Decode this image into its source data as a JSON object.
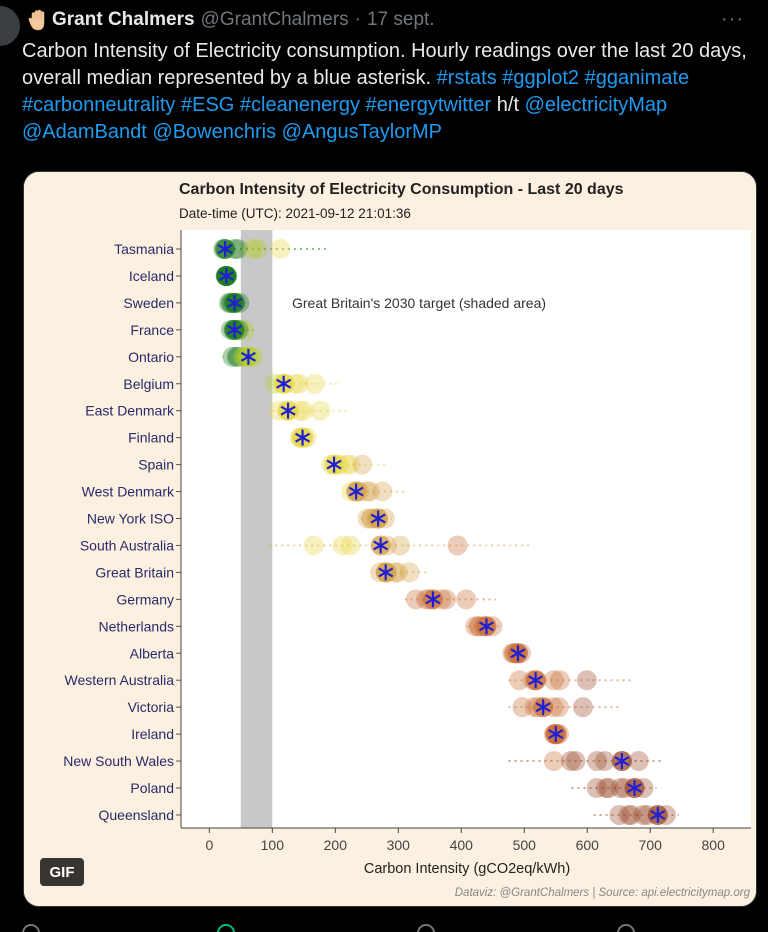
{
  "tweet": {
    "author_name": "Grant Chalmers",
    "handle": "@GrantChalmers",
    "separator": "·",
    "date": "17 sept.",
    "more_label": "···",
    "text_parts": [
      {
        "text": "Carbon Intensity of Electricity consumption. Hourly readings over the last 20 days, overall median represented by a blue asterisk. ",
        "link": false
      },
      {
        "text": "#rstats",
        "link": true
      },
      {
        "text": " ",
        "link": false
      },
      {
        "text": "#ggplot2",
        "link": true
      },
      {
        "text": " ",
        "link": false
      },
      {
        "text": "#gganimate",
        "link": true
      },
      {
        "text": " ",
        "link": false
      },
      {
        "text": "#carbonneutrality",
        "link": true
      },
      {
        "text": " ",
        "link": false
      },
      {
        "text": "#ESG",
        "link": true
      },
      {
        "text": " ",
        "link": false
      },
      {
        "text": "#cleanenergy",
        "link": true
      },
      {
        "text": "  ",
        "link": false
      },
      {
        "text": "#energytwitter",
        "link": true
      },
      {
        "text": " h/t ",
        "link": false
      },
      {
        "text": "@electricityMap",
        "link": true
      },
      {
        "text": " ",
        "link": false
      },
      {
        "text": "@AdamBandt",
        "link": true
      },
      {
        "text": " ",
        "link": false
      },
      {
        "text": "@Bowenchris",
        "link": true
      },
      {
        "text": " ",
        "link": false
      },
      {
        "text": "@AngusTaylorMP",
        "link": true
      }
    ],
    "gif_label": "GIF"
  },
  "chart_data": {
    "type": "scatter",
    "title": "Carbon Intensity of Electricity Consumption - Last 20 days",
    "subtitle": "Date-time (UTC): 2021-09-12 21:01:36",
    "xlabel": "Carbon Intensity (gCO2eq/kWh)",
    "xlim": [
      -45,
      860
    ],
    "xticks": [
      0,
      100,
      200,
      300,
      400,
      500,
      600,
      700,
      800
    ],
    "shaded_band": [
      50,
      100
    ],
    "annotation": "Great Britain's 2030 target (shaded area)",
    "source": "Dataviz: @GrantChalmers | Source: api.electricitymap.org",
    "grid": false,
    "colors": {
      "median_marker": "#1f1fd6",
      "low_intensity": "#1e7a1e",
      "mid_low": "#b5cf2a",
      "mid": "#e8d84a",
      "mid_high": "#d4a24a",
      "high": "#c9703a",
      "very_high": "#9a4a2a",
      "band": "#c8c8c8",
      "panel": "#ffffff",
      "background": "#fcf0e0"
    },
    "categories": [
      "Tasmania",
      "Iceland",
      "Sweden",
      "France",
      "Ontario",
      "Belgium",
      "East Denmark",
      "Finland",
      "Spain",
      "West Denmark",
      "New York ISO",
      "South Australia",
      "Great Britain",
      "Germany",
      "Netherlands",
      "Alberta",
      "Western Australia",
      "Victoria",
      "Ireland",
      "New South Wales",
      "Poland",
      "Queensland"
    ],
    "medians": [
      25,
      27,
      40,
      40,
      62,
      118,
      125,
      148,
      198,
      233,
      268,
      272,
      280,
      355,
      440,
      490,
      518,
      530,
      550,
      655,
      675,
      712
    ],
    "ranges": [
      [
        20,
        185
      ],
      [
        25,
        30
      ],
      [
        25,
        55
      ],
      [
        30,
        70
      ],
      [
        20,
        80
      ],
      [
        95,
        210
      ],
      [
        100,
        220
      ],
      [
        140,
        160
      ],
      [
        190,
        280
      ],
      [
        220,
        310
      ],
      [
        240,
        290
      ],
      [
        95,
        510
      ],
      [
        265,
        350
      ],
      [
        310,
        455
      ],
      [
        410,
        460
      ],
      [
        475,
        500
      ],
      [
        475,
        670
      ],
      [
        475,
        650
      ],
      [
        545,
        560
      ],
      [
        475,
        720
      ],
      [
        575,
        710
      ],
      [
        610,
        745
      ]
    ]
  }
}
